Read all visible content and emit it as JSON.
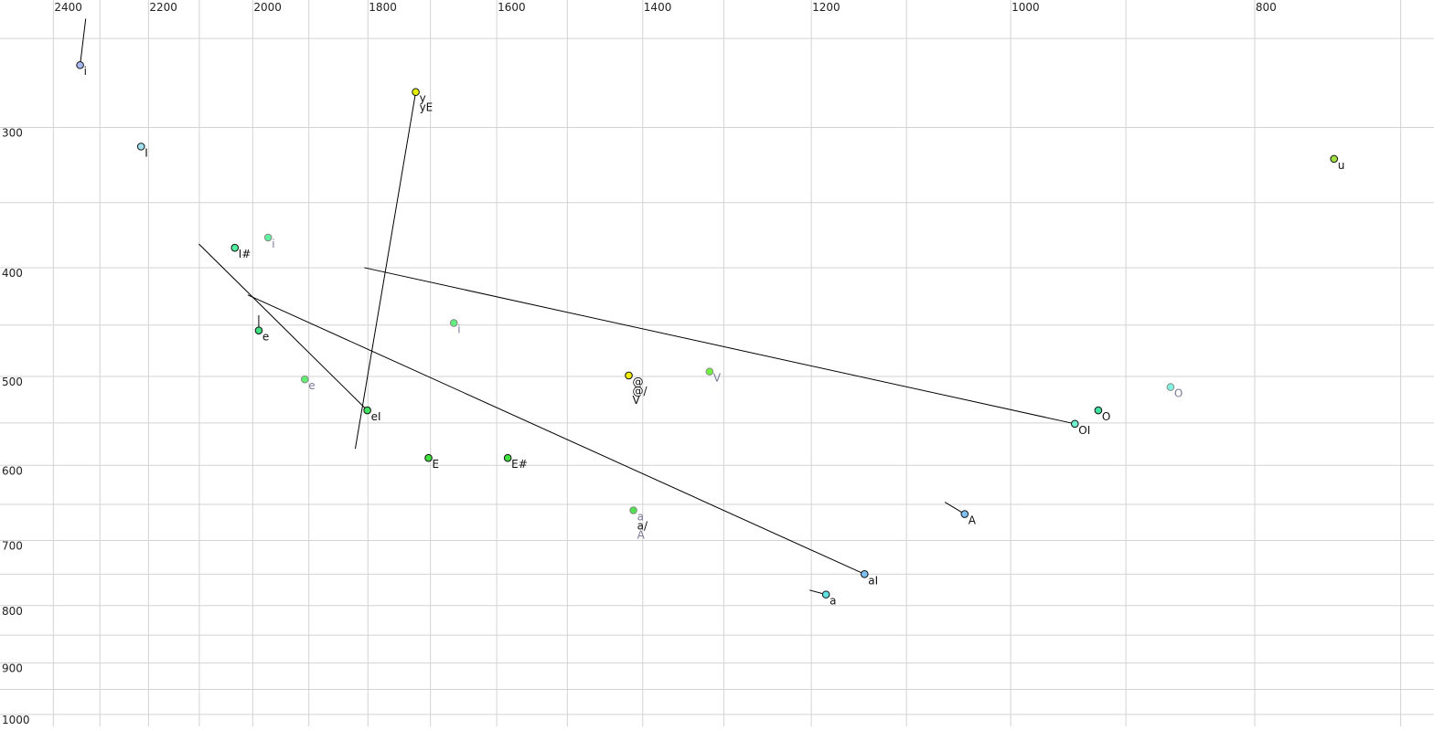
{
  "chart_data": {
    "type": "scatter",
    "title": "",
    "xlabel": "",
    "ylabel": "",
    "x_scale": "log",
    "y_scale": "log",
    "x_reversed": true,
    "y_reversed": true,
    "xlim": [
      2520,
      679
    ],
    "ylim": [
      231,
      1025
    ],
    "grid": true,
    "x_ticks": [
      2400,
      2200,
      2000,
      1800,
      1600,
      1400,
      1200,
      1000,
      800
    ],
    "y_ticks": [
      300,
      400,
      500,
      600,
      700,
      800,
      900,
      1000
    ],
    "x_grid": [
      2400,
      2300,
      2200,
      2100,
      2000,
      1900,
      1800,
      1700,
      1600,
      1500,
      1400,
      1300,
      1200,
      1100,
      1000,
      900,
      800,
      700
    ],
    "y_grid": [
      250,
      300,
      350,
      400,
      450,
      500,
      550,
      600,
      650,
      700,
      750,
      800,
      850,
      900,
      950,
      1000
    ],
    "points": [
      {
        "labels": [
          "i"
        ],
        "x": 2342,
        "y": 264,
        "color": "#a8b8f0",
        "muted": false,
        "tail": [
          2330,
          240
        ]
      },
      {
        "labels": [
          "I"
        ],
        "x": 2215,
        "y": 312,
        "color": "#a0e0f0",
        "muted": false
      },
      {
        "labels": [
          "I#"
        ],
        "x": 2033,
        "y": 384,
        "color": "#50f0a0",
        "muted": false
      },
      {
        "labels": [
          "i"
        ],
        "x": 1972,
        "y": 376,
        "color": "#60f0a0",
        "muted": true
      },
      {
        "labels": [
          "y",
          "yE"
        ],
        "x": 1723,
        "y": 279,
        "color": "#e0f000",
        "muted": false,
        "tail": [
          1821,
          580
        ]
      },
      {
        "labels": [
          "e"
        ],
        "x": 1989,
        "y": 455,
        "color": "#40e080",
        "muted": false,
        "tail": [
          1989,
          441
        ]
      },
      {
        "labels": [
          "e"
        ],
        "x": 1907,
        "y": 503,
        "color": "#60f070",
        "muted": true
      },
      {
        "labels": [
          "eI"
        ],
        "x": 1801,
        "y": 536,
        "color": "#40e060",
        "muted": false,
        "tail": [
          2101,
          381
        ]
      },
      {
        "labels": [
          "i"
        ],
        "x": 1664,
        "y": 448,
        "color": "#60f080",
        "muted": true
      },
      {
        "labels": [
          "E"
        ],
        "x": 1703,
        "y": 591,
        "color": "#40e040",
        "muted": false
      },
      {
        "labels": [
          "E#"
        ],
        "x": 1584,
        "y": 591,
        "color": "#40e040",
        "muted": false
      },
      {
        "labels": [
          "@",
          "@/",
          "V"
        ],
        "x": 1418,
        "y": 499,
        "color": "#f0f000",
        "muted": false
      },
      {
        "labels": [
          "V"
        ],
        "x": 1317,
        "y": 495,
        "color": "#70f040",
        "muted": true
      },
      {
        "labels": [
          "a",
          "a/",
          "A"
        ],
        "x": 1412,
        "y": 658,
        "color": "#50e050",
        "muted": true
      },
      {
        "labels": [
          "aI"
        ],
        "x": 1143,
        "y": 750,
        "color": "#80c0f0",
        "muted": false,
        "tail": [
          2009,
          423
        ]
      },
      {
        "labels": [
          "a"
        ],
        "x": 1184,
        "y": 782,
        "color": "#60e0e0",
        "muted": false,
        "tail": [
          1202,
          775
        ]
      },
      {
        "labels": [
          "A"
        ],
        "x": 1043,
        "y": 663,
        "color": "#80c0f0",
        "muted": false,
        "tail": [
          1062,
          647
        ]
      },
      {
        "labels": [
          "OI"
        ],
        "x": 943,
        "y": 551,
        "color": "#70f0d0",
        "muted": false,
        "tail": [
          1806,
          400
        ]
      },
      {
        "labels": [
          "O"
        ],
        "x": 923,
        "y": 536,
        "color": "#40e0a0",
        "muted": false
      },
      {
        "labels": [
          "O"
        ],
        "x": 864,
        "y": 511,
        "color": "#80f0e0",
        "muted": true
      },
      {
        "labels": [
          "u"
        ],
        "x": 744,
        "y": 320,
        "color": "#a0e040",
        "muted": false
      }
    ],
    "colors": {
      "grid": "#d3d3d3",
      "label": "#111111",
      "muted_label": "#7a7a9a",
      "line": "#000000"
    }
  }
}
